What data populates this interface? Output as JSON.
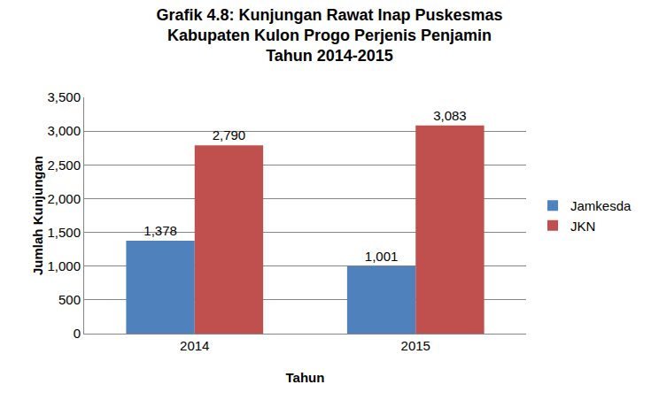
{
  "chart_data": {
    "type": "bar",
    "title": [
      "Grafik 4.8: Kunjungan Rawat Inap Puskesmas",
      "Kabupaten Kulon Progo Perjenis Penjamin",
      "Tahun 2014-2015"
    ],
    "x_label": "Tahun",
    "y_label": "Jumlah Kunjungan",
    "categories": [
      "2014",
      "2015"
    ],
    "series": [
      {
        "name": "Jamkesda",
        "color": "#4f81bd",
        "values": [
          1378,
          1001
        ],
        "value_labels": [
          "1,378",
          "1,001"
        ]
      },
      {
        "name": "JKN",
        "color": "#c0504d",
        "values": [
          2790,
          3083
        ],
        "value_labels": [
          "2,790",
          "3,083"
        ]
      }
    ],
    "ylim": [
      0,
      3500
    ],
    "yticks": [
      0,
      500,
      {
        "value": 1000,
        "label": "1,000"
      },
      {
        "value": 1500,
        "label": "1,500"
      },
      {
        "value": 2000,
        "label": "2,000"
      },
      {
        "value": 2500,
        "label": "2,500"
      },
      {
        "value": 3000,
        "label": "3,000"
      },
      {
        "value": 3500,
        "label": "3,500"
      }
    ],
    "grid": true,
    "legend": "right",
    "data_labels": true
  }
}
